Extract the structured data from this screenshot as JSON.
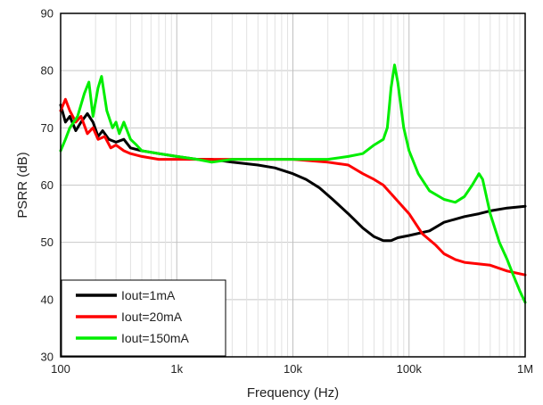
{
  "chart_data": {
    "type": "line",
    "xscale": "log",
    "xlabel": "Frequency (Hz)",
    "ylabel": "PSRR (dB)",
    "xlim": [
      100,
      1000000
    ],
    "ylim": [
      30,
      90
    ],
    "grid": true,
    "legend_position": "bottom-left",
    "x_ticks": [
      {
        "value": 100,
        "label": "100"
      },
      {
        "value": 1000,
        "label": "1k"
      },
      {
        "value": 10000,
        "label": "10k"
      },
      {
        "value": 100000,
        "label": "100k"
      },
      {
        "value": 1000000,
        "label": "1M"
      }
    ],
    "y_ticks": [
      {
        "value": 30,
        "label": "30"
      },
      {
        "value": 40,
        "label": "40"
      },
      {
        "value": 50,
        "label": "50"
      },
      {
        "value": 60,
        "label": "60"
      },
      {
        "value": 70,
        "label": "70"
      },
      {
        "value": 80,
        "label": "80"
      },
      {
        "value": 90,
        "label": "90"
      }
    ],
    "series": [
      {
        "name": "Iout=1mA",
        "color": "#000000",
        "points": [
          [
            100,
            74
          ],
          [
            110,
            71
          ],
          [
            120,
            72
          ],
          [
            135,
            69.5
          ],
          [
            150,
            71
          ],
          [
            170,
            72.5
          ],
          [
            190,
            71
          ],
          [
            210,
            68.5
          ],
          [
            230,
            69.5
          ],
          [
            260,
            68
          ],
          [
            300,
            67.5
          ],
          [
            350,
            68
          ],
          [
            400,
            66.5
          ],
          [
            500,
            66
          ],
          [
            700,
            65.5
          ],
          [
            1000,
            65
          ],
          [
            1500,
            64.5
          ],
          [
            2000,
            64.5
          ],
          [
            3000,
            64
          ],
          [
            5000,
            63.5
          ],
          [
            7000,
            63
          ],
          [
            10000,
            62
          ],
          [
            13000,
            61
          ],
          [
            17000,
            59.5
          ],
          [
            22000,
            57.5
          ],
          [
            30000,
            55
          ],
          [
            40000,
            52.5
          ],
          [
            50000,
            51
          ],
          [
            60000,
            50.3
          ],
          [
            70000,
            50.3
          ],
          [
            80000,
            50.8
          ],
          [
            100000,
            51.2
          ],
          [
            150000,
            52
          ],
          [
            200000,
            53.5
          ],
          [
            300000,
            54.5
          ],
          [
            400000,
            55
          ],
          [
            500000,
            55.5
          ],
          [
            700000,
            56
          ],
          [
            1000000,
            56.3
          ]
        ]
      },
      {
        "name": "Iout=20mA",
        "color": "#ff0000",
        "points": [
          [
            100,
            73
          ],
          [
            110,
            75
          ],
          [
            120,
            73
          ],
          [
            135,
            71
          ],
          [
            150,
            72
          ],
          [
            170,
            69
          ],
          [
            190,
            70
          ],
          [
            210,
            68
          ],
          [
            240,
            68.5
          ],
          [
            270,
            66.5
          ],
          [
            300,
            67
          ],
          [
            350,
            66
          ],
          [
            400,
            65.5
          ],
          [
            500,
            65
          ],
          [
            700,
            64.5
          ],
          [
            1000,
            64.5
          ],
          [
            2000,
            64.5
          ],
          [
            3000,
            64.5
          ],
          [
            5000,
            64.5
          ],
          [
            10000,
            64.5
          ],
          [
            20000,
            64
          ],
          [
            30000,
            63.5
          ],
          [
            40000,
            62
          ],
          [
            50000,
            61
          ],
          [
            60000,
            60
          ],
          [
            70000,
            58.5
          ],
          [
            100000,
            55
          ],
          [
            130000,
            51.5
          ],
          [
            170000,
            49.5
          ],
          [
            200000,
            48
          ],
          [
            250000,
            47
          ],
          [
            300000,
            46.5
          ],
          [
            500000,
            46
          ],
          [
            700000,
            45
          ],
          [
            1000000,
            44.3
          ]
        ]
      },
      {
        "name": "Iout=150mA",
        "color": "#00ee00",
        "points": [
          [
            100,
            66
          ],
          [
            110,
            68
          ],
          [
            120,
            70
          ],
          [
            140,
            72
          ],
          [
            160,
            76
          ],
          [
            175,
            78
          ],
          [
            190,
            72
          ],
          [
            210,
            77
          ],
          [
            225,
            79
          ],
          [
            250,
            73
          ],
          [
            280,
            70
          ],
          [
            300,
            71
          ],
          [
            320,
            69
          ],
          [
            350,
            71
          ],
          [
            400,
            68
          ],
          [
            450,
            67
          ],
          [
            500,
            66
          ],
          [
            700,
            65.5
          ],
          [
            1000,
            65
          ],
          [
            1500,
            64.5
          ],
          [
            2000,
            64
          ],
          [
            3000,
            64.5
          ],
          [
            5000,
            64.5
          ],
          [
            10000,
            64.5
          ],
          [
            20000,
            64.5
          ],
          [
            30000,
            65
          ],
          [
            40000,
            65.5
          ],
          [
            50000,
            67
          ],
          [
            60000,
            68
          ],
          [
            65000,
            70
          ],
          [
            70000,
            77
          ],
          [
            75000,
            81
          ],
          [
            80000,
            78
          ],
          [
            90000,
            70
          ],
          [
            100000,
            66
          ],
          [
            120000,
            62
          ],
          [
            150000,
            59
          ],
          [
            200000,
            57.5
          ],
          [
            250000,
            57
          ],
          [
            300000,
            58
          ],
          [
            350000,
            60
          ],
          [
            400000,
            62
          ],
          [
            430000,
            61
          ],
          [
            500000,
            55
          ],
          [
            600000,
            50
          ],
          [
            700000,
            47
          ],
          [
            800000,
            44
          ],
          [
            900000,
            41.5
          ],
          [
            1000000,
            39.5
          ]
        ]
      }
    ]
  }
}
